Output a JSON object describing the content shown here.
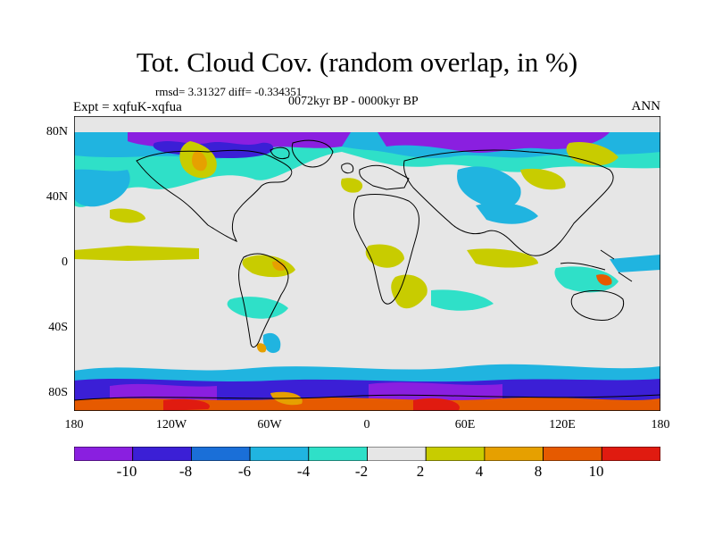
{
  "title": "Tot. Cloud Cov. (random overlap, in %)",
  "stats": "rmsd= 3.31327 diff= -0.334351",
  "expt": "Expt = xqfuK-xqfua",
  "period": "0072kyr BP - 0000kyr BP",
  "season": "ANN",
  "lat_labels": [
    "80N",
    "40N",
    "0",
    "40S",
    "80S"
  ],
  "lon_labels": [
    "180",
    "120W",
    "60W",
    "0",
    "60E",
    "120E",
    "180"
  ],
  "colorbar": {
    "labels": [
      "-10",
      "-8",
      "-6",
      "-4",
      "-2",
      "2",
      "4",
      "8",
      "10"
    ],
    "colors": [
      "#8a1fe0",
      "#3b1fd6",
      "#1a6fd8",
      "#20b4e0",
      "#2fe0c8",
      "#e6e6e6",
      "#c8cc00",
      "#e6a000",
      "#e65a00",
      "#e01b10"
    ]
  }
}
